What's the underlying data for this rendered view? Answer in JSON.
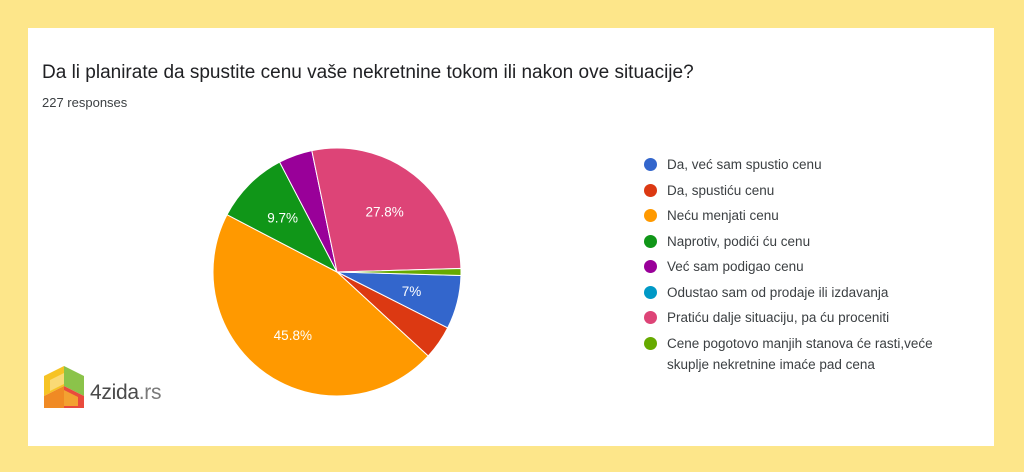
{
  "title": "Da li planirate da spustite cenu vaše nekretnine tokom ili nakon ove situacije?",
  "responses_label": "227 responses",
  "logo": {
    "name": "4zida",
    "tld": ".rs"
  },
  "chart_data": {
    "type": "pie",
    "title": "Da li planirate da spustite cenu vaše nekretnine tokom ili nakon ove situacije?",
    "total_responses": 227,
    "legend_position": "right",
    "slices": [
      {
        "label": "Da, već sam spustio cenu",
        "value": 7.0,
        "color": "#3366cc",
        "data_label": "7%"
      },
      {
        "label": "Da, spustiću cenu",
        "value": 4.4,
        "color": "#dc3912",
        "data_label": ""
      },
      {
        "label": "Neću menjati cenu",
        "value": 45.8,
        "color": "#ff9900",
        "data_label": "45.8%"
      },
      {
        "label": "Naprotiv, podići ću cenu",
        "value": 9.7,
        "color": "#109618",
        "data_label": "9.7%"
      },
      {
        "label": "Već sam podigao cenu",
        "value": 4.4,
        "color": "#990099",
        "data_label": ""
      },
      {
        "label": "Odustao sam od prodaje ili izdavanja",
        "value": 0.0,
        "color": "#0099c6",
        "data_label": ""
      },
      {
        "label": "Pratiću dalje situaciju, pa ću proceniti",
        "value": 27.8,
        "color": "#dd4477",
        "data_label": "27.8%"
      },
      {
        "label": "Cene pogotovo manjih stanova će rasti,veće skuplje nekretnine imaće pad cena",
        "value": 0.9,
        "color": "#66aa00",
        "data_label": ""
      }
    ]
  }
}
